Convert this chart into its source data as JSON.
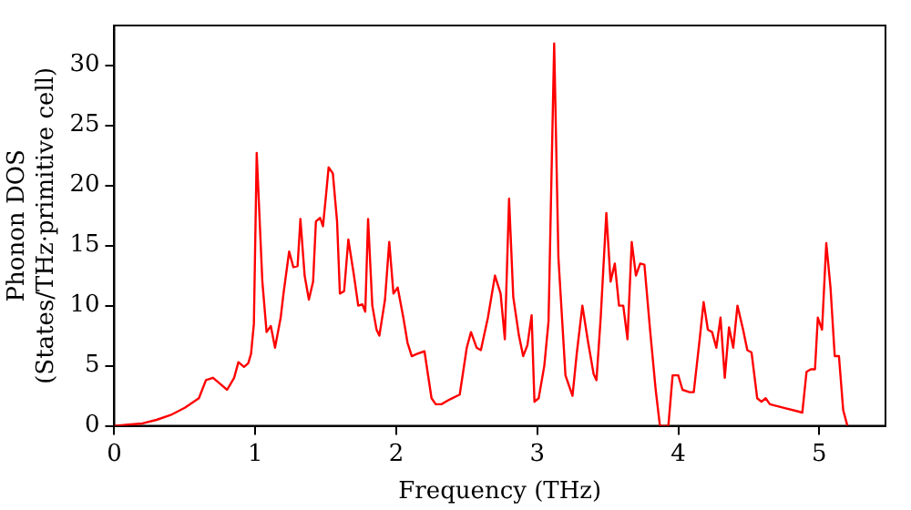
{
  "chart_data": {
    "type": "line",
    "xlabel": "Frequency (THz)",
    "ylabel": "Phonon DOS\n(States/THz·primitive cell)",
    "xlim": [
      0,
      5.47
    ],
    "ylim": [
      0,
      33.3
    ],
    "xticks": [
      0,
      1,
      2,
      3,
      4,
      5
    ],
    "yticks": [
      0,
      5,
      10,
      15,
      20,
      25,
      30
    ],
    "grid": false,
    "legend": false,
    "marker": "none",
    "line_style": "solid",
    "series": [
      {
        "color": "#ff0000",
        "x": [
          0,
          0.1,
          0.2,
          0.3,
          0.4,
          0.5,
          0.6,
          0.65,
          0.7,
          0.75,
          0.8,
          0.85,
          0.88,
          0.92,
          0.95,
          0.97,
          0.99,
          1.01,
          1.05,
          1.08,
          1.11,
          1.14,
          1.18,
          1.2,
          1.24,
          1.27,
          1.3,
          1.32,
          1.35,
          1.38,
          1.41,
          1.43,
          1.46,
          1.48,
          1.5,
          1.52,
          1.55,
          1.58,
          1.6,
          1.63,
          1.66,
          1.7,
          1.73,
          1.76,
          1.78,
          1.8,
          1.83,
          1.86,
          1.88,
          1.92,
          1.95,
          1.98,
          2.01,
          2.05,
          2.08,
          2.11,
          2.15,
          2.2,
          2.25,
          2.28,
          2.32,
          2.38,
          2.45,
          2.5,
          2.53,
          2.57,
          2.6,
          2.65,
          2.7,
          2.74,
          2.77,
          2.8,
          2.83,
          2.87,
          2.9,
          2.93,
          2.96,
          2.98,
          3.01,
          3.05,
          3.08,
          3.12,
          3.15,
          3.2,
          3.25,
          3.28,
          3.32,
          3.36,
          3.4,
          3.42,
          3.45,
          3.49,
          3.52,
          3.55,
          3.58,
          3.61,
          3.64,
          3.67,
          3.7,
          3.73,
          3.76,
          3.8,
          3.84,
          3.87,
          3.93,
          3.96,
          4.0,
          4.03,
          4.08,
          4.11,
          4.15,
          4.18,
          4.21,
          4.24,
          4.27,
          4.3,
          4.33,
          4.36,
          4.39,
          4.42,
          4.46,
          4.49,
          4.52,
          4.56,
          4.59,
          4.62,
          4.65,
          4.75,
          4.85,
          4.88,
          4.91,
          4.94,
          4.97,
          4.99,
          5.02,
          5.05,
          5.08,
          5.11,
          5.14,
          5.17,
          5.2
        ],
        "values": [
          0,
          0.1,
          0.2,
          0.5,
          0.9,
          1.5,
          2.3,
          3.8,
          4.0,
          3.5,
          3.0,
          4.0,
          5.3,
          4.9,
          5.2,
          6.0,
          8.5,
          22.7,
          12,
          7.8,
          8.3,
          6.5,
          9,
          11,
          14.5,
          13.2,
          13.3,
          17.2,
          12.5,
          10.5,
          12,
          17,
          17.3,
          16.6,
          19,
          21.5,
          21,
          17,
          11,
          11.2,
          15.5,
          12.5,
          10,
          10.1,
          9.5,
          17.2,
          10,
          8,
          7.5,
          10.5,
          15.3,
          11,
          11.5,
          9,
          6.9,
          5.8,
          6,
          6.2,
          2.3,
          1.8,
          1.8,
          2.2,
          2.6,
          6.5,
          7.8,
          6.5,
          6.3,
          9,
          12.5,
          11,
          7.2,
          18.9,
          10.7,
          7.5,
          5.8,
          6.7,
          9.2,
          2,
          2.3,
          5,
          8.7,
          31.8,
          14,
          4.2,
          2.5,
          6,
          10,
          7,
          4.3,
          3.8,
          9,
          17.7,
          12,
          13.5,
          10,
          10,
          7.2,
          15.3,
          12.5,
          13.5,
          13.4,
          8,
          3,
          0,
          0,
          4.2,
          4.2,
          3,
          2.8,
          2.8,
          7,
          10.3,
          8,
          7.8,
          6.5,
          9,
          4,
          8.2,
          6.5,
          10,
          8,
          6.3,
          6.1,
          2.3,
          2,
          2.3,
          1.8,
          1.5,
          1.2,
          1.1,
          4.5,
          4.7,
          4.7,
          9,
          8,
          15.2,
          11.5,
          5.8,
          5.8,
          1.3,
          0
        ]
      }
    ]
  }
}
